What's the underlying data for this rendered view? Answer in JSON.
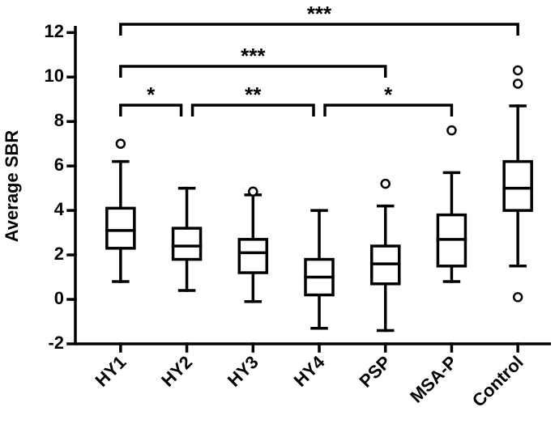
{
  "chart_data": {
    "type": "box",
    "y_label": "Average SBR",
    "categories": [
      "HY1",
      "HY2",
      "HY3",
      "HY4",
      "PSP",
      "MSA-P",
      "Control"
    ],
    "boxes": [
      {
        "whislo": 0.8,
        "q1": 2.3,
        "med": 3.1,
        "q3": 4.1,
        "whishi": 6.2,
        "fliers": [
          7.0
        ]
      },
      {
        "whislo": 0.4,
        "q1": 1.8,
        "med": 2.4,
        "q3": 3.2,
        "whishi": 5.0,
        "fliers": []
      },
      {
        "whislo": -0.1,
        "q1": 1.2,
        "med": 2.1,
        "q3": 2.7,
        "whishi": 4.7,
        "fliers": [
          4.85
        ]
      },
      {
        "whislo": -1.3,
        "q1": 0.2,
        "med": 1.0,
        "q3": 1.8,
        "whishi": 4.0,
        "fliers": []
      },
      {
        "whislo": -1.4,
        "q1": 0.7,
        "med": 1.6,
        "q3": 2.4,
        "whishi": 4.2,
        "fliers": [
          5.2
        ]
      },
      {
        "whislo": 0.8,
        "q1": 1.5,
        "med": 2.7,
        "q3": 3.8,
        "whishi": 5.7,
        "fliers": [
          7.6
        ]
      },
      {
        "whislo": 1.5,
        "q1": 4.0,
        "med": 5.0,
        "q3": 6.2,
        "whishi": 8.7,
        "fliers": [
          10.3,
          9.7,
          0.1
        ]
      }
    ],
    "comparisons": [
      {
        "groups": [
          "HY1",
          "HY2"
        ],
        "label": "*"
      },
      {
        "groups": [
          "HY2",
          "HY4"
        ],
        "label": "**"
      },
      {
        "groups": [
          "HY4",
          "MSA-P"
        ],
        "label": "*"
      },
      {
        "groups": [
          "HY1",
          "PSP"
        ],
        "label": "***"
      },
      {
        "groups": [
          "HY1",
          "Control"
        ],
        "label": "***"
      }
    ],
    "ylim": [
      -2,
      12.3
    ],
    "yticks": [
      -2,
      0,
      2,
      4,
      6,
      8,
      10,
      12
    ],
    "color": "#000000"
  }
}
